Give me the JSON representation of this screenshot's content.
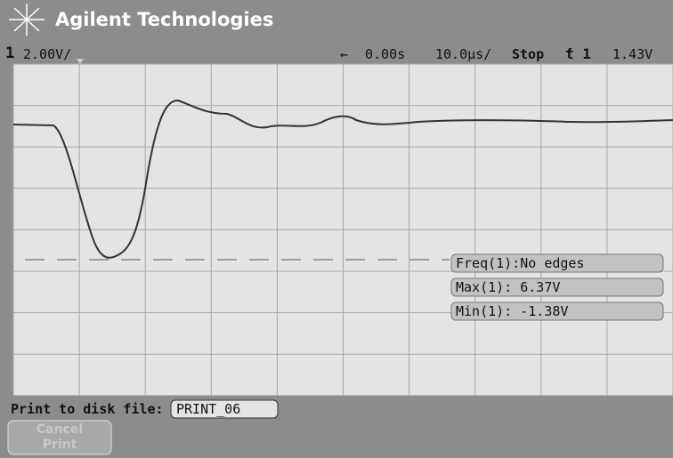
{
  "header": {
    "brand": "Agilent Technologies"
  },
  "status": {
    "channel": "1",
    "scale": "2.00V/",
    "arrow": "←",
    "delay": "0.00s",
    "timebase": "10.0µs/",
    "mode": "Stop",
    "trigger": "ƭ 1",
    "level": "1.43V"
  },
  "measurements": [
    "Freq(1):No edges",
    "Max(1): 6.37V",
    "Min(1): -1.38V"
  ],
  "footer": {
    "prompt": "Print to disk file:",
    "file": "PRINT_06",
    "button": "Cancel Print"
  }
}
